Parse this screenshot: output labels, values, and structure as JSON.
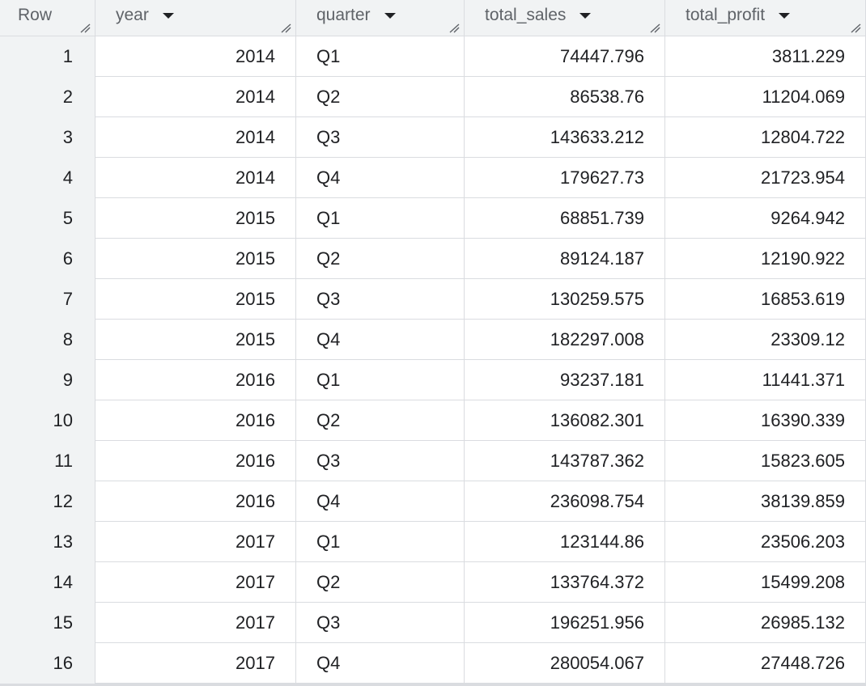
{
  "table": {
    "columns": [
      {
        "key": "row",
        "label": "Row",
        "sortable": false
      },
      {
        "key": "year",
        "label": "year",
        "sortable": true
      },
      {
        "key": "quarter",
        "label": "quarter",
        "sortable": true
      },
      {
        "key": "total_sales",
        "label": "total_sales",
        "sortable": true
      },
      {
        "key": "total_profit",
        "label": "total_profit",
        "sortable": true
      }
    ],
    "rows": [
      [
        "1",
        "2014",
        "Q1",
        "74447.796",
        "3811.229"
      ],
      [
        "2",
        "2014",
        "Q2",
        "86538.76",
        "11204.069"
      ],
      [
        "3",
        "2014",
        "Q3",
        "143633.212",
        "12804.722"
      ],
      [
        "4",
        "2014",
        "Q4",
        "179627.73",
        "21723.954"
      ],
      [
        "5",
        "2015",
        "Q1",
        "68851.739",
        "9264.942"
      ],
      [
        "6",
        "2015",
        "Q2",
        "89124.187",
        "12190.922"
      ],
      [
        "7",
        "2015",
        "Q3",
        "130259.575",
        "16853.619"
      ],
      [
        "8",
        "2015",
        "Q4",
        "182297.008",
        "23309.12"
      ],
      [
        "9",
        "2016",
        "Q1",
        "93237.181",
        "11441.371"
      ],
      [
        "10",
        "2016",
        "Q2",
        "136082.301",
        "16390.339"
      ],
      [
        "11",
        "2016",
        "Q3",
        "143787.362",
        "15823.605"
      ],
      [
        "12",
        "2016",
        "Q4",
        "236098.754",
        "38139.859"
      ],
      [
        "13",
        "2017",
        "Q1",
        "123144.86",
        "23506.203"
      ],
      [
        "14",
        "2017",
        "Q2",
        "133764.372",
        "15499.208"
      ],
      [
        "15",
        "2017",
        "Q3",
        "196251.956",
        "26985.132"
      ],
      [
        "16",
        "2017",
        "Q4",
        "280054.067",
        "27448.726"
      ]
    ]
  },
  "icons": {
    "sort": "sort-down-icon",
    "resize": "column-resize-icon"
  },
  "colors": {
    "header_bg": "#f1f3f4",
    "border": "#dadce0",
    "text": "#202124",
    "header_text": "#5f6368"
  }
}
